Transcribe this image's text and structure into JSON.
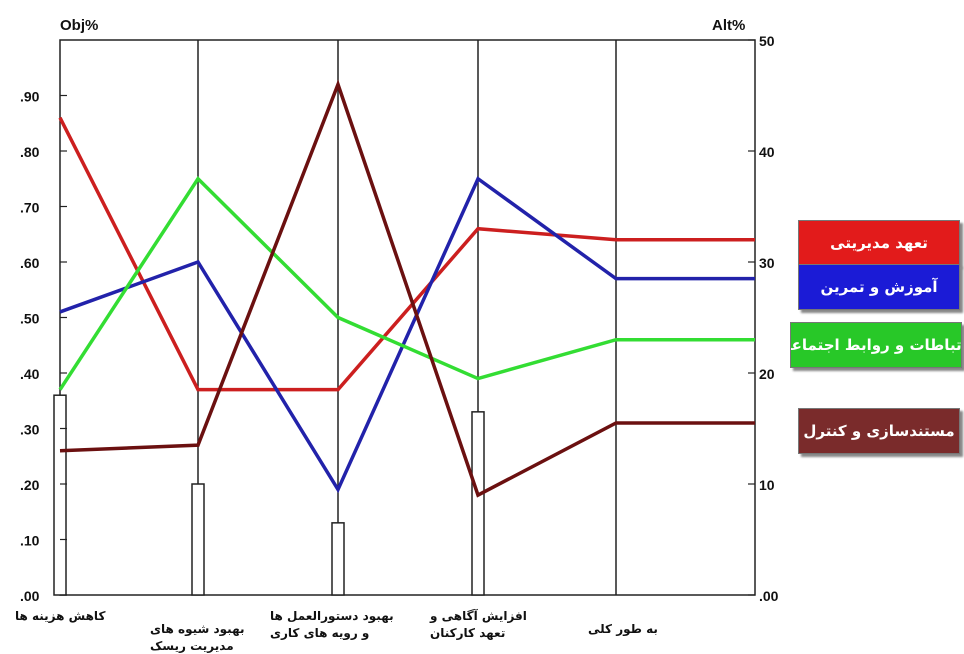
{
  "chart_data": {
    "type": "line",
    "left_axis_label": "Obj%",
    "right_axis_label": "Alt%",
    "left_ticks": [
      ".00",
      ".10",
      ".20",
      ".30",
      ".40",
      ".50",
      ".60",
      ".70",
      ".80",
      ".90"
    ],
    "right_ticks": [
      ".00",
      "10",
      "20",
      "30",
      "40",
      "50"
    ],
    "ylim_left": [
      0,
      1.0
    ],
    "ylim_right": [
      0,
      50
    ],
    "categories": [
      [
        "کاهش هزینه ها"
      ],
      [
        "بهبود شیوه های",
        "مدیریت ریسک"
      ],
      [
        "بهبود دستورالعمل ها",
        "و رویه های کاری"
      ],
      [
        "افزایش آگاهی و",
        "تعهد کارکنان"
      ],
      [
        "به طور کلی"
      ]
    ],
    "bars_obj": [
      0.36,
      0.2,
      0.13,
      0.33
    ],
    "series": [
      {
        "name": "تعهد مدیریتی",
        "color": "#cc1f1f",
        "values": [
          43,
          18.5,
          18.5,
          33,
          32
        ]
      },
      {
        "name": "آموزش و تمرین",
        "color": "#2222aa",
        "values": [
          25.5,
          30,
          9.5,
          37.5,
          28.5
        ]
      },
      {
        "name": "ارتباطات و روابط اجتماعی",
        "color": "#33dd33",
        "values": [
          18.5,
          37.5,
          25,
          19.5,
          23
        ]
      },
      {
        "name": "مستندسازی و کنترل",
        "color": "#6b1010",
        "values": [
          13,
          13.5,
          46,
          9,
          15.5
        ]
      }
    ],
    "legend": [
      {
        "label": "تعهد مدیریتی",
        "bg": "#e21b1b"
      },
      {
        "label": "آموزش و تمرین",
        "bg": "#1b1bd6"
      },
      {
        "label": "ارتباطات و روابط اجتماعی",
        "bg": "#28c828"
      },
      {
        "label": "مستندسازی و کنترل",
        "bg": "#7a2b2b"
      }
    ]
  }
}
